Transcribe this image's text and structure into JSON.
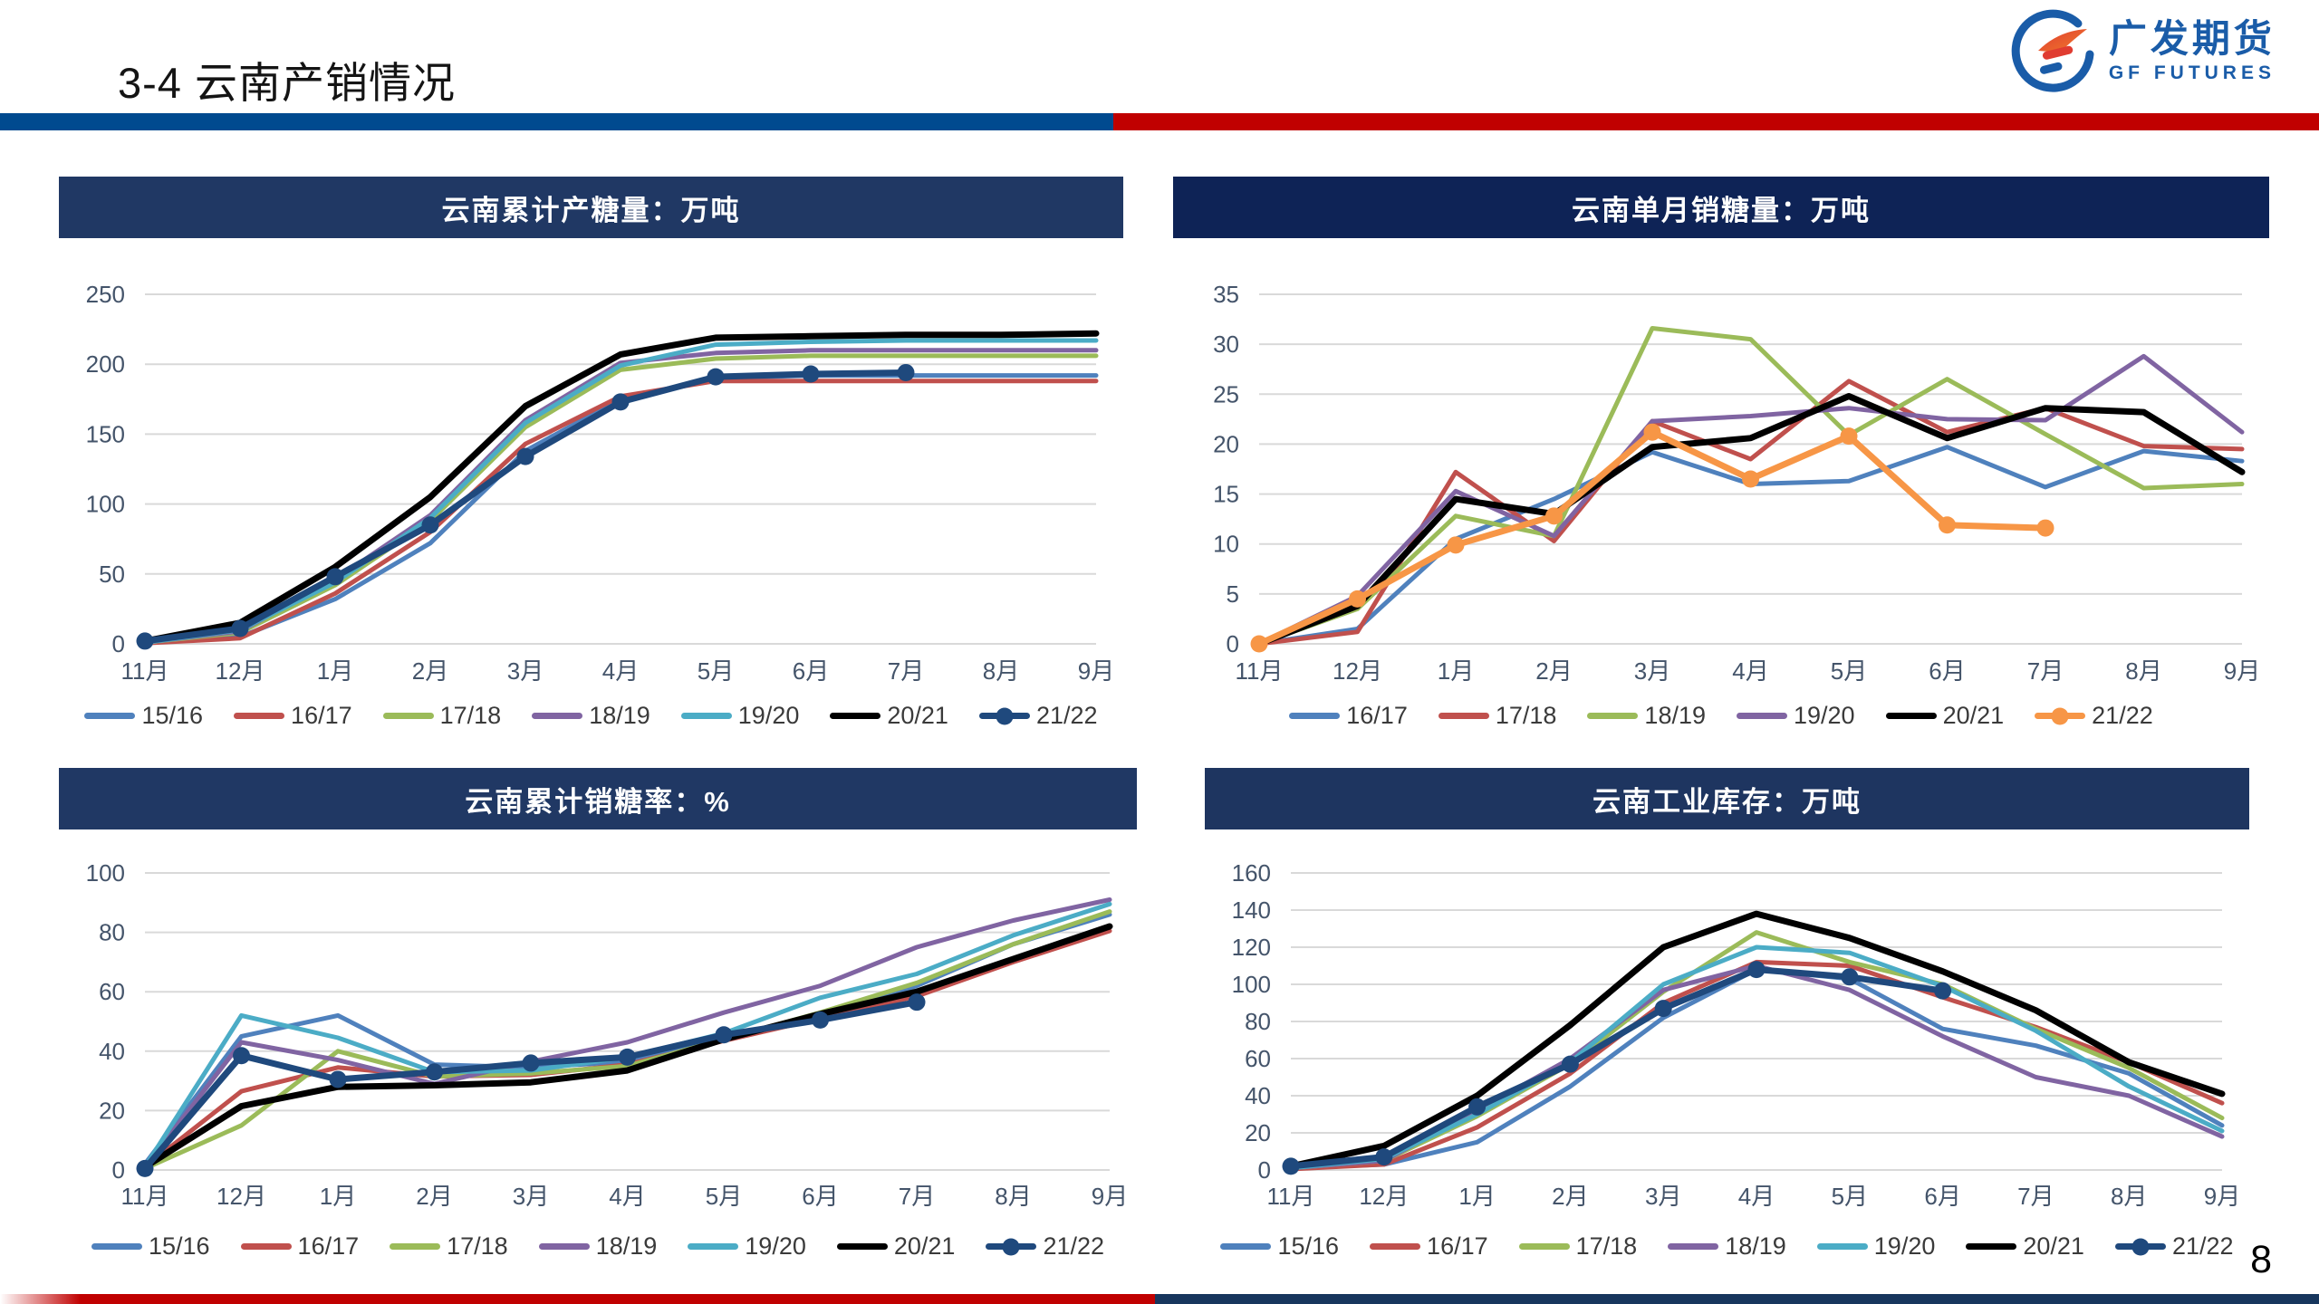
{
  "page": {
    "title": "3-4 云南产销情况",
    "page_number": "8"
  },
  "logo": {
    "name_cn": "广发期货",
    "name_en": "GF FUTURES",
    "blue": "#1A5CA8",
    "red": "#E03C31"
  },
  "colors": {
    "divider_blue": "#004A8F",
    "divider_red": "#C00000",
    "footer_red": "#C00000",
    "footer_navy": "#17365D",
    "grid": "#D9D9D9",
    "axis_text": "#44546A",
    "legend_text": "#3A3A3A"
  },
  "chart_data": [
    {
      "type": "line",
      "title": "云南累计产糖量：万吨",
      "header_color": "#203864",
      "categories": [
        "11月",
        "12月",
        "1月",
        "2月",
        "3月",
        "4月",
        "5月",
        "6月",
        "7月",
        "8月",
        "9月"
      ],
      "ylim": [
        0,
        250
      ],
      "ytick_step": 50,
      "grid": true,
      "legend_position": "bottom",
      "series": [
        {
          "name": "15/16",
          "color": "#4F81BD",
          "marker": false,
          "values": [
            1,
            5,
            32,
            72,
            138,
            175,
            190,
            192,
            192,
            192,
            192
          ]
        },
        {
          "name": "16/17",
          "color": "#C0504D",
          "marker": false,
          "values": [
            0.5,
            4,
            36,
            80,
            143,
            177,
            188,
            188,
            188,
            188,
            188
          ]
        },
        {
          "name": "17/18",
          "color": "#9BBB59",
          "marker": false,
          "values": [
            1,
            8,
            42,
            88,
            155,
            196,
            204,
            206,
            206,
            206,
            206
          ]
        },
        {
          "name": "18/19",
          "color": "#8064A2",
          "marker": false,
          "values": [
            1,
            9,
            46,
            92,
            160,
            201,
            208,
            210,
            210,
            210,
            210
          ]
        },
        {
          "name": "19/20",
          "color": "#4BACC6",
          "marker": false,
          "values": [
            1,
            10,
            44,
            90,
            158,
            199,
            214,
            216,
            217,
            217,
            217
          ]
        },
        {
          "name": "20/21",
          "color": "#000000",
          "marker": false,
          "width": 7,
          "values": [
            2,
            15,
            55,
            105,
            170,
            207,
            219,
            220,
            221,
            221,
            222
          ]
        },
        {
          "name": "21/22",
          "color": "#1F497D",
          "marker": true,
          "width": 7,
          "values": [
            2,
            11,
            48,
            85,
            134,
            173,
            191,
            193,
            194,
            null,
            null
          ]
        }
      ]
    },
    {
      "type": "line",
      "title": "云南单月销糖量：万吨",
      "header_color": "#0E2356",
      "categories": [
        "11月",
        "12月",
        "1月",
        "2月",
        "3月",
        "4月",
        "5月",
        "6月",
        "7月",
        "8月",
        "9月"
      ],
      "ylim": [
        0,
        35
      ],
      "ytick_step": 5,
      "grid": true,
      "legend_position": "bottom",
      "series": [
        {
          "name": "16/17",
          "color": "#4F81BD",
          "marker": false,
          "values": [
            0,
            1.5,
            10.5,
            14.5,
            19.2,
            16,
            16.3,
            19.7,
            15.7,
            19.3,
            18.3
          ]
        },
        {
          "name": "17/18",
          "color": "#C0504D",
          "marker": false,
          "values": [
            0,
            1.2,
            17.2,
            10.3,
            22.3,
            18.5,
            26.3,
            21.2,
            23.6,
            19.8,
            19.5
          ]
        },
        {
          "name": "18/19",
          "color": "#9BBB59",
          "marker": false,
          "values": [
            0,
            3.5,
            12.8,
            10.8,
            31.6,
            30.5,
            20.9,
            26.5,
            21,
            15.6,
            16
          ]
        },
        {
          "name": "19/20",
          "color": "#8064A2",
          "marker": false,
          "values": [
            0,
            4.8,
            15.3,
            10.8,
            22.3,
            22.8,
            23.6,
            22.5,
            22.4,
            28.8,
            21.2
          ]
        },
        {
          "name": "20/21",
          "color": "#000000",
          "marker": false,
          "width": 7,
          "values": [
            0,
            3.8,
            14.5,
            13,
            19.7,
            20.6,
            24.8,
            20.6,
            23.6,
            23.2,
            17.2
          ]
        },
        {
          "name": "21/22",
          "color": "#F79646",
          "marker": true,
          "width": 7,
          "values": [
            0,
            4.5,
            9.9,
            12.8,
            21.2,
            16.5,
            20.8,
            11.9,
            11.6,
            null,
            null
          ]
        }
      ]
    },
    {
      "type": "line",
      "title": "云南累计销糖率：%",
      "header_color": "#203864",
      "categories": [
        "11月",
        "12月",
        "1月",
        "2月",
        "3月",
        "4月",
        "5月",
        "6月",
        "7月",
        "8月",
        "9月"
      ],
      "ylim": [
        0,
        100
      ],
      "ytick_step": 20,
      "grid": true,
      "legend_position": "bottom",
      "series": [
        {
          "name": "15/16",
          "color": "#4F81BD",
          "marker": false,
          "values": [
            2,
            45,
            52,
            35.5,
            34.5,
            36.5,
            44,
            52,
            62,
            76,
            86
          ]
        },
        {
          "name": "16/17",
          "color": "#C0504D",
          "marker": false,
          "values": [
            1,
            26.5,
            34.5,
            31.5,
            32,
            35.5,
            43.5,
            51,
            58.5,
            70,
            80.5
          ]
        },
        {
          "name": "17/18",
          "color": "#9BBB59",
          "marker": false,
          "values": [
            0.5,
            15,
            40,
            31.5,
            32.5,
            35,
            44,
            53,
            63,
            76,
            87
          ]
        },
        {
          "name": "18/19",
          "color": "#8064A2",
          "marker": false,
          "values": [
            1,
            43,
            37,
            29,
            36.5,
            43,
            53,
            62,
            75,
            84,
            91
          ]
        },
        {
          "name": "19/20",
          "color": "#4BACC6",
          "marker": false,
          "values": [
            1,
            52,
            44.5,
            33,
            33.5,
            38,
            46,
            58,
            66,
            79,
            89.5
          ]
        },
        {
          "name": "20/21",
          "color": "#000000",
          "marker": false,
          "width": 7,
          "values": [
            1,
            21.5,
            28,
            28.5,
            29.5,
            33.5,
            44,
            52.5,
            60,
            71,
            82
          ]
        },
        {
          "name": "21/22",
          "color": "#1F497D",
          "marker": true,
          "width": 7,
          "values": [
            0.5,
            38.5,
            30.5,
            33,
            36,
            38,
            45.5,
            50.5,
            56.5,
            null,
            null
          ]
        }
      ]
    },
    {
      "type": "line",
      "title": "云南工业库存：万吨",
      "header_color": "#1E3560",
      "categories": [
        "11月",
        "12月",
        "1月",
        "2月",
        "3月",
        "4月",
        "5月",
        "6月",
        "7月",
        "8月",
        "9月"
      ],
      "ylim": [
        0,
        160
      ],
      "ytick_step": 20,
      "grid": true,
      "legend_position": "bottom",
      "series": [
        {
          "name": "15/16",
          "color": "#4F81BD",
          "marker": false,
          "values": [
            1,
            3,
            15,
            45,
            82,
            108,
            103,
            76,
            67,
            52,
            24
          ]
        },
        {
          "name": "16/17",
          "color": "#C0504D",
          "marker": false,
          "values": [
            0.5,
            3,
            23,
            52,
            90,
            112,
            110,
            93,
            77,
            58,
            36
          ]
        },
        {
          "name": "17/18",
          "color": "#9BBB59",
          "marker": false,
          "values": [
            1,
            5,
            29,
            57,
            96,
            128,
            112,
            100,
            76,
            55,
            28
          ]
        },
        {
          "name": "18/19",
          "color": "#8064A2",
          "marker": false,
          "values": [
            1,
            5,
            32,
            60,
            97,
            110,
            97,
            72,
            50,
            40,
            18
          ]
        },
        {
          "name": "19/20",
          "color": "#4BACC6",
          "marker": false,
          "values": [
            1,
            6,
            30,
            58,
            100,
            120,
            117,
            99,
            75,
            45,
            21
          ]
        },
        {
          "name": "20/21",
          "color": "#000000",
          "marker": false,
          "width": 7,
          "values": [
            2,
            13,
            40,
            78,
            120,
            138,
            125,
            107,
            86,
            58,
            41
          ]
        },
        {
          "name": "21/22",
          "color": "#1F497D",
          "marker": true,
          "width": 7,
          "values": [
            2,
            7,
            34,
            57,
            87,
            108,
            104,
            96.5,
            null,
            null,
            null
          ]
        }
      ]
    }
  ]
}
